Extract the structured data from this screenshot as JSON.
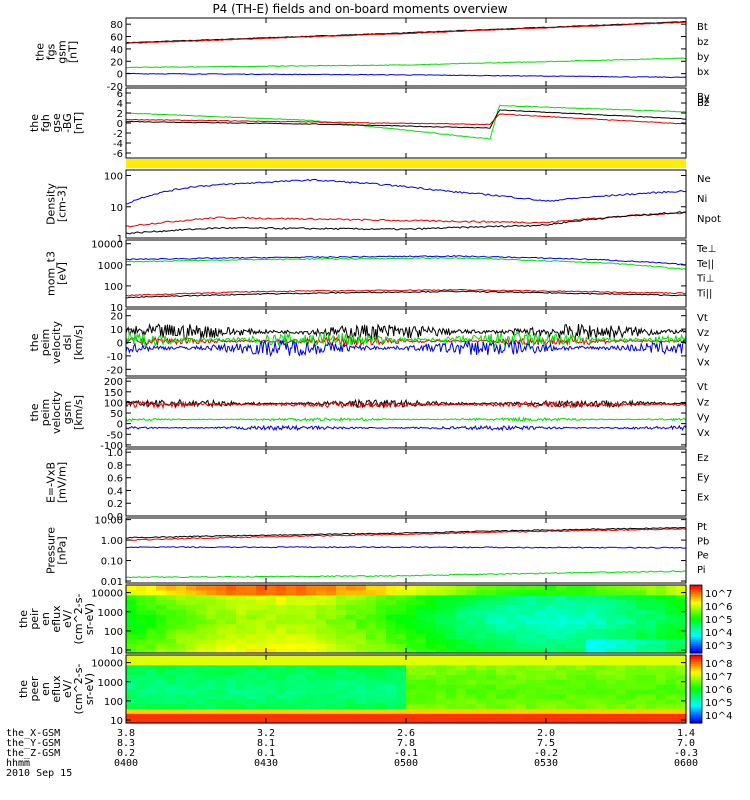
{
  "chart_data": {
    "type": "line",
    "title": "P4 (TH-E) fields and on-board moments overview",
    "date": "2010 Sep 15",
    "time_ticks": [
      "0400",
      "0430",
      "0500",
      "0530",
      "0600"
    ],
    "time_range_min": [
      0,
      120
    ],
    "panels": [
      {
        "id": "fgs",
        "ylabel": [
          "the",
          "fgs",
          "gsm",
          "[nT]"
        ],
        "ticks": [
          "80",
          "60",
          "40",
          "20",
          "0",
          "-20"
        ],
        "tickvals": [
          80,
          60,
          40,
          20,
          0,
          -20
        ],
        "ylim": [
          -20,
          90
        ],
        "series": [
          {
            "name": "Bt",
            "color": "#000000",
            "x": [
              0,
              60,
              120
            ],
            "y": [
              50,
              66,
              84
            ]
          },
          {
            "name": "bz",
            "color": "#dd0000",
            "x": [
              0,
              60,
              120
            ],
            "y": [
              49,
              65,
              83
            ]
          },
          {
            "name": "by",
            "color": "#00dd00",
            "x": [
              0,
              60,
              120
            ],
            "y": [
              10,
              14,
              25
            ]
          },
          {
            "name": "bx",
            "color": "#0000dd",
            "x": [
              0,
              60,
              120
            ],
            "y": [
              0,
              -2,
              -6
            ]
          }
        ]
      },
      {
        "id": "fgh",
        "ylabel": [
          "the",
          "fgh",
          "gse",
          "-BG",
          "[nT]"
        ],
        "ticks": [
          "6",
          "4",
          "2",
          "0",
          "-2",
          "-4",
          "-6"
        ],
        "tickvals": [
          6,
          4,
          2,
          0,
          -2,
          -4,
          -6
        ],
        "ylim": [
          -7,
          7
        ],
        "series": [
          {
            "name": "By",
            "color": "#00dd00",
            "x": [
              0,
              40,
              78,
              80,
              120
            ],
            "y": [
              2,
              0.5,
              -3.2,
              3.5,
              2.2
            ]
          },
          {
            "name": "Bx",
            "color": "#000000",
            "x": [
              0,
              40,
              78,
              80,
              120
            ],
            "y": [
              0.3,
              -0.2,
              -1,
              2.6,
              0.8
            ]
          },
          {
            "name": "Bz",
            "color": "#dd0000",
            "x": [
              0,
              40,
              78,
              80,
              120
            ],
            "y": [
              0.7,
              0.2,
              -0.3,
              1.8,
              -0.2
            ]
          }
        ]
      },
      {
        "id": "density",
        "ylabel": [
          "Density",
          "[cm-3]"
        ],
        "ticks": [
          "100",
          "10",
          "1"
        ],
        "tickvals": [
          100,
          10,
          1
        ],
        "ylim": [
          1,
          150
        ],
        "log": true,
        "series": [
          {
            "name": "Ne",
            "color": "#dd0000",
            "x": [
              0,
              20,
              60,
              90,
              120
            ],
            "y": [
              2.3,
              4.5,
              3.6,
              3.1,
              6.5
            ]
          },
          {
            "name": "Ni",
            "color": "#000000",
            "x": [
              0,
              20,
              60,
              90,
              120
            ],
            "y": [
              1.4,
              2.1,
              1.9,
              2.6,
              6.8
            ]
          },
          {
            "name": "Npot",
            "color": "#0000dd",
            "x": [
              0,
              15,
              40,
              70,
              90,
              120
            ],
            "y": [
              12,
              45,
              72,
              30,
              15,
              32
            ]
          }
        ]
      },
      {
        "id": "mom_t",
        "ylabel": [
          "mom_t3",
          "[eV]"
        ],
        "ticks": [
          "10000",
          "1000",
          "100",
          "10"
        ],
        "tickvals": [
          10000,
          1000,
          100,
          10
        ],
        "ylim": [
          10,
          15000
        ],
        "log": true,
        "series": [
          {
            "name": "Te⊥",
            "color": "#dd0000",
            "x": [
              0,
              30,
              70,
              120
            ],
            "y": [
              35,
              55,
              65,
              45
            ]
          },
          {
            "name": "Te||",
            "color": "#000000",
            "x": [
              0,
              30,
              70,
              120
            ],
            "y": [
              28,
              42,
              55,
              35
            ]
          },
          {
            "name": "Ti⊥",
            "color": "#0000dd",
            "x": [
              0,
              30,
              70,
              100,
              120
            ],
            "y": [
              1800,
              2200,
              2600,
              1800,
              1000
            ]
          },
          {
            "name": "Ti||",
            "color": "#00dd00",
            "x": [
              0,
              30,
              70,
              100,
              120
            ],
            "y": [
              1400,
              1800,
              2100,
              1300,
              600
            ]
          }
        ]
      },
      {
        "id": "peim_dsl",
        "ylabel": [
          "the",
          "peim",
          "velocity",
          "dsl",
          "[km/s]"
        ],
        "ticks": [
          "20",
          "10",
          "0",
          "-10",
          "-20"
        ],
        "tickvals": [
          20,
          10,
          0,
          -10,
          -20
        ],
        "ylim": [
          -25,
          25
        ],
        "series": [
          {
            "name": "Vt",
            "color": "#000000",
            "base": 8,
            "amp": 6
          },
          {
            "name": "Vz",
            "color": "#dd0000",
            "base": 1,
            "amp": 3
          },
          {
            "name": "Vy",
            "color": "#00dd00",
            "base": 2,
            "amp": 6
          },
          {
            "name": "Vx",
            "color": "#0000dd",
            "base": -4,
            "amp": 6
          }
        ]
      },
      {
        "id": "peim_gsm",
        "ylabel": [
          "the",
          "peim",
          "velocity",
          "gsm",
          "[km/s]"
        ],
        "ticks": [
          "200",
          "150",
          "100",
          "50",
          "0",
          "-50",
          "-100"
        ],
        "tickvals": [
          200,
          150,
          100,
          50,
          0,
          -50,
          -100
        ],
        "ylim": [
          -110,
          215
        ],
        "series": [
          {
            "name": "Vt",
            "color": "#000000",
            "base": 95,
            "amp": 18
          },
          {
            "name": "Vz",
            "color": "#dd0000",
            "base": 90,
            "amp": 15
          },
          {
            "name": "Vy",
            "color": "#00dd00",
            "base": 20,
            "amp": 8
          },
          {
            "name": "Vx",
            "color": "#0000dd",
            "base": -20,
            "amp": 10
          }
        ]
      },
      {
        "id": "efield",
        "ylabel": [
          "E=-VxB",
          "[mV/m]"
        ],
        "ticks": [
          "1.0",
          "0.8",
          "0.6",
          "0.4",
          "0.2",
          "0.0"
        ],
        "tickvals": [
          1.0,
          0.8,
          0.6,
          0.4,
          0.2,
          0.0
        ],
        "ylim": [
          0,
          1.05
        ],
        "series": [
          {
            "name": "Ez",
            "color": "#dd0000"
          },
          {
            "name": "Ey",
            "color": "#00dd00"
          },
          {
            "name": "Ex",
            "color": "#0000dd"
          }
        ]
      },
      {
        "id": "pressure",
        "ylabel": [
          "Pressure",
          "[nPa]"
        ],
        "ticks": [
          "10.00",
          "1.00",
          "0.10",
          "0.01"
        ],
        "tickvals": [
          10,
          1,
          0.1,
          0.01
        ],
        "ylim": [
          0.008,
          12
        ],
        "log": true,
        "series": [
          {
            "name": "Pt",
            "color": "#000000",
            "x": [
              0,
              60,
              120
            ],
            "y": [
              1.3,
              2.2,
              4.0
            ]
          },
          {
            "name": "Pb",
            "color": "#dd0000",
            "x": [
              0,
              60,
              120
            ],
            "y": [
              1.0,
              1.9,
              3.5
            ]
          },
          {
            "name": "Pe",
            "color": "#00dd00",
            "x": [
              0,
              60,
              120
            ],
            "y": [
              0.015,
              0.018,
              0.03
            ]
          },
          {
            "name": "Pi",
            "color": "#0000dd",
            "x": [
              0,
              60,
              120
            ],
            "y": [
              0.45,
              0.45,
              0.42
            ]
          }
        ]
      },
      {
        "id": "peir_spec",
        "type": "heatmap",
        "ylabel": [
          "the",
          "peir",
          "en",
          "eflux",
          "eV/",
          "(cm^2-s-",
          "sr-eV)"
        ],
        "ticks": [
          "10000",
          "1000",
          "100",
          "10"
        ],
        "tickvals": [
          10000,
          1000,
          100,
          10
        ],
        "ylim": [
          7,
          25000
        ],
        "log": true,
        "colorbar_ticks": [
          "10^7",
          "10^6",
          "10^5",
          "10^4",
          "10^3"
        ]
      },
      {
        "id": "peer_spec",
        "type": "heatmap",
        "ylabel": [
          "the",
          "peer",
          "en",
          "eflux",
          "eV/",
          "(cm^2-s-",
          "sr-eV)"
        ],
        "ticks": [
          "10000",
          "1000",
          "100",
          "10"
        ],
        "tickvals": [
          10000,
          1000,
          100,
          10
        ],
        "ylim": [
          7,
          25000
        ],
        "log": true,
        "colorbar_ticks": [
          "10^8",
          "10^7",
          "10^6",
          "10^5",
          "10^4"
        ]
      }
    ],
    "ephemeris": [
      {
        "label": "the_X-GSM",
        "values": [
          "3.8",
          "3.2",
          "2.6",
          "2.0",
          "1.4"
        ]
      },
      {
        "label": "the_Y-GSM",
        "values": [
          "8.3",
          "8.1",
          "7.8",
          "7.5",
          "7.0"
        ]
      },
      {
        "label": "the_Z-GSM",
        "values": [
          "0.2",
          "0.1",
          "-0.1",
          "-0.2",
          "-0.3"
        ]
      },
      {
        "label": "hhmm",
        "values": [
          "0400",
          "0430",
          "0500",
          "0530",
          "0600"
        ]
      }
    ],
    "grid": false,
    "legend_placement": "right"
  }
}
